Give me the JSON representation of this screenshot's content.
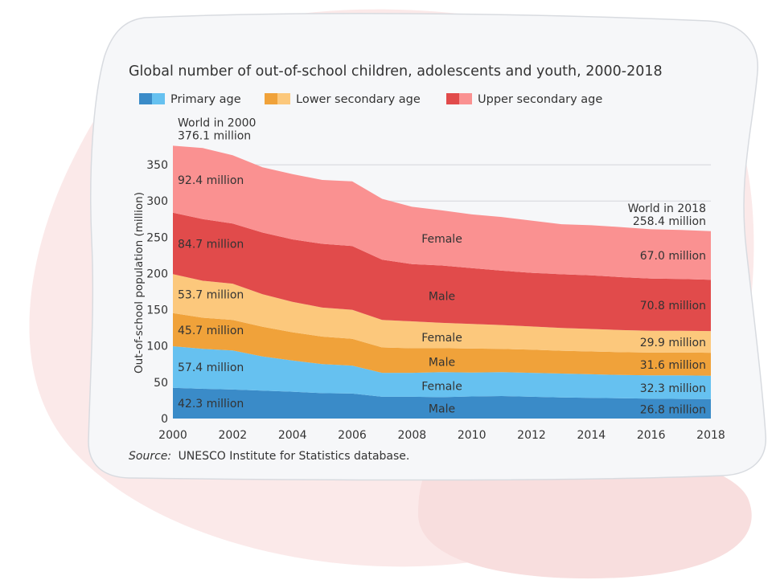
{
  "chart_data": {
    "type": "area",
    "title": "Global number of out-of-school children, adolescents and youth, 2000-2018",
    "ylabel": "Out-of-school population (million)",
    "xlabel": "",
    "ylim": [
      0,
      380
    ],
    "xlim": [
      2000,
      2018
    ],
    "yticks": [
      "0",
      "50",
      "100",
      "150",
      "200",
      "250",
      "300",
      "350"
    ],
    "xticks": [
      "2000",
      "2002",
      "2004",
      "2006",
      "2008",
      "2010",
      "2012",
      "2014",
      "2016",
      "2018"
    ],
    "grid": true,
    "stacked": true,
    "legend": {
      "placement": "top-left",
      "items": [
        "Primary age",
        "Lower secondary age",
        "Upper secondary age"
      ]
    },
    "x": [
      2000,
      2001,
      2002,
      2003,
      2004,
      2005,
      2006,
      2007,
      2008,
      2009,
      2010,
      2011,
      2012,
      2013,
      2014,
      2015,
      2016,
      2017,
      2018
    ],
    "series": [
      {
        "group": "Primary age",
        "sex": "Male",
        "color": "#3a8bc8",
        "values": [
          42.3,
          41.0,
          40.0,
          38.5,
          37.0,
          35.0,
          34.5,
          30.0,
          30.0,
          29.5,
          30.5,
          31.0,
          30.0,
          29.0,
          28.5,
          28.0,
          27.5,
          27.0,
          26.8
        ]
      },
      {
        "group": "Primary age",
        "sex": "Female",
        "color": "#66c1f0",
        "values": [
          57.4,
          55.0,
          54.0,
          47.0,
          43.0,
          40.0,
          38.5,
          33.0,
          33.0,
          34.5,
          33.0,
          33.0,
          33.0,
          33.0,
          32.5,
          32.0,
          32.0,
          32.5,
          32.3
        ]
      },
      {
        "group": "Lower secondary age",
        "sex": "Male",
        "color": "#f0a23a",
        "values": [
          45.7,
          43.0,
          42.0,
          41.0,
          39.0,
          38.0,
          37.0,
          35.0,
          34.0,
          33.0,
          33.0,
          32.0,
          32.0,
          31.5,
          31.5,
          31.5,
          31.5,
          31.6,
          31.6
        ]
      },
      {
        "group": "Lower secondary age",
        "sex": "Female",
        "color": "#fcc87c",
        "values": [
          53.7,
          51.0,
          50.0,
          45.0,
          42.0,
          40.0,
          40.0,
          38.0,
          37.0,
          35.0,
          34.0,
          33.0,
          32.0,
          31.5,
          31.0,
          30.5,
          30.0,
          30.0,
          29.9
        ]
      },
      {
        "group": "Upper secondary age",
        "sex": "Male",
        "color": "#e14b4b",
        "values": [
          84.7,
          85.0,
          83.0,
          85.0,
          86.0,
          88.0,
          88.0,
          83.0,
          79.0,
          79.0,
          77.0,
          75.0,
          74.0,
          74.0,
          74.0,
          73.0,
          72.0,
          71.5,
          70.8
        ]
      },
      {
        "group": "Upper secondary age",
        "sex": "Female",
        "color": "#fa9191",
        "values": [
          92.4,
          98.0,
          94.0,
          90.0,
          90.0,
          88.0,
          89.0,
          84.0,
          79.0,
          76.0,
          74.0,
          74.0,
          72.0,
          69.0,
          69.0,
          69.0,
          68.0,
          67.5,
          67.0
        ]
      }
    ],
    "data_labels": [
      {
        "text": "42.3 million",
        "x": 2000,
        "y": 21
      },
      {
        "text": "57.4 million",
        "x": 2000,
        "y": 71
      },
      {
        "text": "45.7 million",
        "x": 2000,
        "y": 122
      },
      {
        "text": "53.7 million",
        "x": 2000,
        "y": 171
      },
      {
        "text": "84.7 million",
        "x": 2000,
        "y": 241
      },
      {
        "text": "92.4 million",
        "x": 2000,
        "y": 329
      },
      {
        "text": "26.8 million",
        "x": 2018,
        "y": 13
      },
      {
        "text": "32.3 million",
        "x": 2018,
        "y": 42
      },
      {
        "text": "31.6 million",
        "x": 2018,
        "y": 74
      },
      {
        "text": "29.9 million",
        "x": 2018,
        "y": 105
      },
      {
        "text": "70.8 million",
        "x": 2018,
        "y": 156
      },
      {
        "text": "67.0 million",
        "x": 2018,
        "y": 225
      }
    ],
    "mid_labels": [
      {
        "text": "Male",
        "x": 2009,
        "y": 14
      },
      {
        "text": "Female",
        "x": 2009,
        "y": 45
      },
      {
        "text": "Male",
        "x": 2009,
        "y": 78
      },
      {
        "text": "Female",
        "x": 2009,
        "y": 112
      },
      {
        "text": "Male",
        "x": 2009,
        "y": 169
      },
      {
        "text": "Female",
        "x": 2009,
        "y": 248
      }
    ],
    "annotations": [
      {
        "lines": [
          "World in 2000",
          "376.1 million"
        ],
        "x": 2000,
        "y": 376.1,
        "anchor": "start"
      },
      {
        "lines": [
          "World in 2018",
          "258.4 million"
        ],
        "x": 2018,
        "y": 258.4,
        "anchor": "end"
      }
    ],
    "source_label": "Source:",
    "source_text": "UNESCO Institute for Statistics database."
  }
}
